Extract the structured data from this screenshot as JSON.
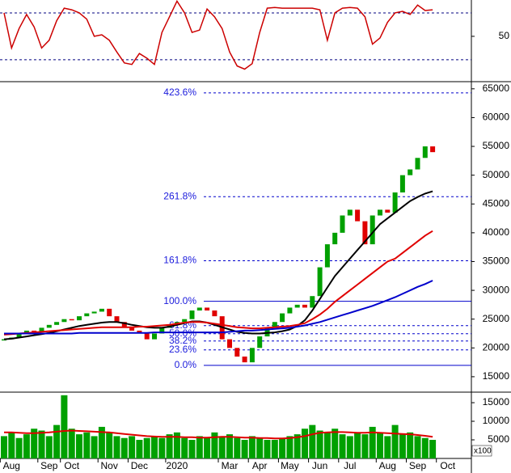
{
  "chart_data": [
    {
      "type": "line",
      "ylim": [
        -7,
        96.5
      ],
      "yticks": [
        50
      ],
      "levels": [
        20,
        80
      ],
      "level_color": "#000080",
      "series": [
        {
          "color": "#cc0000",
          "values": [
            80,
            35,
            60,
            78,
            62,
            35,
            45,
            70,
            86,
            84,
            80,
            72,
            50,
            52,
            45,
            30,
            16,
            14,
            28,
            22,
            14,
            55,
            75,
            95,
            80,
            55,
            58,
            85,
            75,
            60,
            30,
            12,
            8,
            15,
            55,
            86,
            87,
            86,
            86,
            86,
            86,
            86,
            84,
            45,
            80,
            86,
            87,
            86,
            75,
            40,
            48,
            68,
            80,
            82,
            78,
            90,
            83,
            84,
            null,
            null
          ]
        }
      ]
    },
    {
      "type": "candlestick",
      "ylim": [
        12600,
        66100
      ],
      "yticks": [
        15000,
        20000,
        25000,
        30000,
        35000,
        40000,
        45000,
        50000,
        55000,
        60000,
        65000
      ],
      "up_color": "#00a000",
      "down_color": "#e00000",
      "open": [
        21300,
        21500,
        21800,
        22500,
        23000,
        22800,
        23500,
        24000,
        24500,
        25000,
        24800,
        25500,
        26000,
        26300,
        26800,
        25500,
        24500,
        23500,
        23000,
        22500,
        21500,
        22500,
        23500,
        24000,
        24500,
        25000,
        26500,
        27000,
        26500,
        25500,
        21500,
        20000,
        18500,
        17500,
        20000,
        22000,
        23500,
        24500,
        26000,
        27000,
        27500,
        27000,
        29000,
        34000,
        38000,
        40000,
        43000,
        44000,
        42000,
        38000,
        43000,
        44000,
        43500,
        47000,
        50000,
        51000,
        53000,
        55000,
        null,
        null
      ],
      "close": [
        21500,
        21800,
        22500,
        23000,
        22800,
        23500,
        24000,
        24500,
        25000,
        24800,
        25500,
        26000,
        26300,
        26800,
        25500,
        24500,
        23500,
        23000,
        22500,
        21500,
        22500,
        23500,
        24000,
        24500,
        25000,
        26500,
        27000,
        26500,
        25500,
        21500,
        20000,
        18500,
        17500,
        20000,
        22000,
        23500,
        24500,
        26000,
        27000,
        27500,
        27000,
        29000,
        34000,
        38000,
        40000,
        43000,
        44000,
        42000,
        38000,
        43000,
        44000,
        43500,
        47000,
        50000,
        51000,
        53000,
        55000,
        54000,
        null,
        null
      ],
      "series": [
        {
          "color": "#000000",
          "values": [
            21500,
            21600,
            21800,
            22000,
            22200,
            22400,
            22600,
            22900,
            23200,
            23500,
            23800,
            24000,
            24200,
            24400,
            24500,
            24500,
            24300,
            24000,
            23800,
            23600,
            23500,
            23500,
            23700,
            24000,
            24300,
            24600,
            24600,
            24400,
            24000,
            23600,
            23200,
            22800,
            22600,
            22500,
            22500,
            22600,
            22700,
            22900,
            23200,
            23800,
            24800,
            26500,
            28500,
            30500,
            32500,
            34000,
            35500,
            37000,
            38500,
            40000,
            41500,
            42500,
            43500,
            44500,
            45500,
            46200,
            46800,
            47200,
            null,
            null
          ]
        },
        {
          "color": "#e00000",
          "values": [
            22300,
            22400,
            22500,
            22600,
            22700,
            22800,
            22900,
            23000,
            23100,
            23200,
            23300,
            23400,
            23500,
            23600,
            23600,
            23600,
            23600,
            23600,
            23700,
            23700,
            23800,
            23900,
            24000,
            24200,
            24400,
            24500,
            24500,
            24400,
            24200,
            24000,
            23800,
            23600,
            23500,
            23400,
            23400,
            23500,
            23600,
            23700,
            23800,
            24000,
            24300,
            25000,
            25800,
            26800,
            28000,
            29000,
            30000,
            31000,
            32000,
            33000,
            34000,
            35000,
            35500,
            36500,
            37500,
            38500,
            39500,
            40300,
            null,
            null
          ]
        },
        {
          "color": "#0000cc",
          "values": [
            22500,
            22500,
            22500,
            22500,
            22500,
            22500,
            22500,
            22500,
            22500,
            22500,
            22600,
            22600,
            22600,
            22600,
            22600,
            22600,
            22600,
            22600,
            22600,
            22600,
            22700,
            22700,
            22700,
            22700,
            22700,
            22700,
            22700,
            22700,
            22700,
            22700,
            22800,
            22900,
            23000,
            23000,
            23100,
            23200,
            23300,
            23400,
            23500,
            23700,
            23900,
            24200,
            24500,
            24900,
            25300,
            25700,
            26100,
            26500,
            26900,
            27300,
            27800,
            28300,
            28800,
            29400,
            30000,
            30600,
            31100,
            31700,
            null,
            null
          ]
        }
      ],
      "fib_color": "#0000cc",
      "fib_levels": [
        {
          "value": 64300,
          "label": "423.6%",
          "dash": true
        },
        {
          "value": 46270,
          "label": "261.8%",
          "dash": true
        },
        {
          "value": 35140,
          "label": "161.8%",
          "dash": true
        },
        {
          "value": 28100,
          "label": "100.0%",
          "dash": false
        },
        {
          "value": 23870,
          "label": "61.8%",
          "dash": true
        },
        {
          "value": 22460,
          "label": "50.0%",
          "dash": true
        },
        {
          "value": 21200,
          "label": "38.2%",
          "dash": true
        },
        {
          "value": 19650,
          "label": "23.6%",
          "dash": true
        },
        {
          "value": 16970,
          "label": "0.0%",
          "dash": false
        }
      ]
    },
    {
      "type": "bar",
      "categories": [
        null,
        "Aug",
        null,
        null,
        null,
        null,
        "Sep",
        null,
        null,
        "Oct",
        null,
        null,
        null,
        null,
        "Nov",
        null,
        null,
        null,
        "Dec",
        null,
        null,
        null,
        null,
        "2020",
        null,
        null,
        null,
        null,
        null,
        null,
        "Mar",
        null,
        null,
        null,
        "Apr",
        null,
        null,
        null,
        "May",
        null,
        null,
        null,
        "Jun",
        null,
        null,
        null,
        "Jul",
        null,
        null,
        null,
        null,
        "Aug",
        null,
        null,
        null,
        "Sep",
        null,
        null,
        null,
        "Oct"
      ],
      "values": [
        6000,
        7000,
        5500,
        6500,
        8000,
        7500,
        6000,
        9000,
        17000,
        8000,
        6500,
        7000,
        6000,
        8500,
        7000,
        6000,
        5500,
        6000,
        5000,
        5500,
        6000,
        5500,
        6500,
        7000,
        5500,
        5000,
        6000,
        5500,
        7000,
        6000,
        6500,
        5500,
        5000,
        6000,
        5500,
        5000,
        5000,
        5500,
        6000,
        6500,
        8000,
        9000,
        7500,
        7000,
        8000,
        6500,
        6000,
        7000,
        6500,
        8500,
        7000,
        6000,
        9000,
        6500,
        7000,
        6000,
        5500,
        5000,
        null,
        null
      ],
      "color": "#00a000",
      "series": [
        {
          "color": "#e00000",
          "values": [
            7000,
            7000,
            6900,
            6800,
            6800,
            6900,
            7000,
            7200,
            7400,
            7500,
            7400,
            7300,
            7200,
            7100,
            7000,
            6800,
            6600,
            6400,
            6200,
            6000,
            5900,
            5800,
            5800,
            5800,
            5700,
            5700,
            5600,
            5600,
            5700,
            5800,
            5800,
            5700,
            5600,
            5600,
            5500,
            5500,
            5400,
            5400,
            5500,
            5700,
            6000,
            6500,
            6900,
            7000,
            7100,
            7100,
            7000,
            6900,
            6900,
            7000,
            6900,
            6800,
            6700,
            6600,
            6500,
            6300,
            6100,
            5800,
            null,
            null
          ]
        }
      ],
      "ylim": [
        0,
        17400
      ],
      "yticks": [
        5000,
        10000,
        15000
      ],
      "unit_label": "x100"
    }
  ]
}
